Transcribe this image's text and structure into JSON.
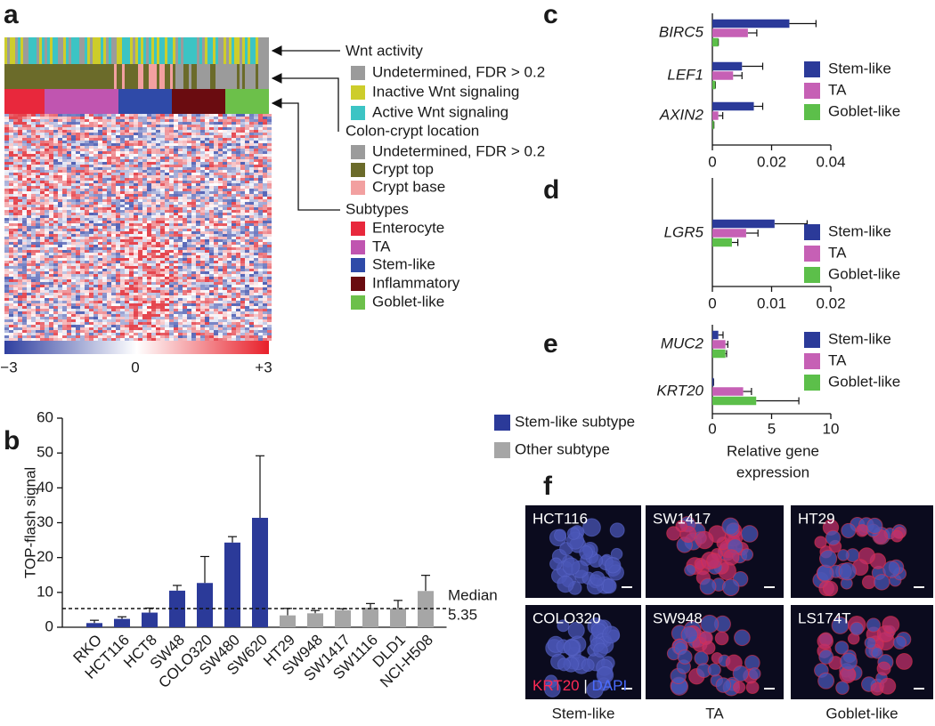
{
  "panel_labels": [
    "a",
    "b",
    "c",
    "d",
    "e",
    "f"
  ],
  "heatmap": {
    "annotations": [
      {
        "title": "Wnt activity",
        "items": [
          "Undetermined, FDR > 0.2",
          "Inactive Wnt signaling",
          "Active Wnt signaling"
        ],
        "colors": [
          "#9b9b9b",
          "#cdcd2b",
          "#3cc4c4"
        ]
      },
      {
        "title": "Colon-crypt location",
        "items": [
          "Undetermined, FDR > 0.2",
          "Crypt top",
          "Crypt base"
        ],
        "colors": [
          "#9b9b9b",
          "#6b6b2a",
          "#f2a0a0"
        ]
      },
      {
        "title": "Subtypes",
        "items": [
          "Enterocyte",
          "TA",
          "Stem-like",
          "Inflammatory",
          "Goblet-like"
        ],
        "colors": [
          "#e8283c",
          "#c055b0",
          "#2f4aa8",
          "#6a0c10",
          "#6cc04a"
        ]
      }
    ],
    "colorbar_labels": [
      "−3",
      "0",
      "+3"
    ]
  },
  "chart_data": [
    {
      "type": "bar",
      "ylabel": "TOP-flash signal",
      "categories": [
        "RKO",
        "HCT116",
        "HCT8",
        "SW48",
        "COLO320",
        "SW480",
        "SW620",
        "HT29",
        "SW948",
        "SW1417",
        "SW1116",
        "DLD1",
        "NCI-H508"
      ],
      "series": [
        {
          "name": "Stem-like subtype",
          "color": "#2b3a99",
          "values": [
            1.2,
            2.4,
            4.2,
            10.5,
            12.7,
            24.3,
            31.4,
            null,
            null,
            null,
            null,
            null,
            null
          ],
          "errors": [
            0.8,
            0.6,
            1.3,
            1.5,
            7.6,
            1.7,
            17.8,
            null,
            null,
            null,
            null,
            null,
            null
          ]
        },
        {
          "name": "Other subtype",
          "color": "#a6a6a6",
          "values": [
            null,
            null,
            null,
            null,
            null,
            null,
            null,
            3.4,
            4.0,
            4.9,
            5.6,
            5.4,
            10.4
          ],
          "errors": [
            null,
            null,
            null,
            null,
            null,
            null,
            null,
            2.0,
            0.8,
            0.4,
            1.2,
            2.3,
            4.5
          ]
        }
      ],
      "ylim": [
        0,
        60
      ],
      "yticks": [
        0,
        10,
        20,
        30,
        40,
        50,
        60
      ],
      "median": {
        "label": "Median",
        "value": 5.35
      }
    },
    {
      "type": "hbar",
      "categories": [
        "BIRC5",
        "LEF1",
        "AXIN2"
      ],
      "series": [
        {
          "name": "Stem-like",
          "color": "#2b3a99",
          "values": [
            0.026,
            0.01,
            0.014
          ],
          "errors": [
            0.009,
            0.007,
            0.003
          ]
        },
        {
          "name": "TA",
          "color": "#c660b5",
          "values": [
            0.012,
            0.007,
            0.002
          ],
          "errors": [
            0.003,
            0.003,
            0.0015
          ]
        },
        {
          "name": "Goblet-like",
          "color": "#5cbf4a",
          "values": [
            0.002,
            0.001,
            0.0005
          ],
          "errors": [
            0,
            0,
            0
          ]
        }
      ],
      "xlim": [
        0,
        0.04
      ],
      "xticks": [
        0,
        0.02,
        0.04
      ]
    },
    {
      "type": "hbar",
      "categories": [
        "LGR5"
      ],
      "series": [
        {
          "name": "Stem-like",
          "color": "#2b3a99",
          "values": [
            0.0105
          ],
          "errors": [
            0.0055
          ]
        },
        {
          "name": "TA",
          "color": "#c660b5",
          "values": [
            0.0057
          ],
          "errors": [
            0.002
          ]
        },
        {
          "name": "Goblet-like",
          "color": "#5cbf4a",
          "values": [
            0.0033
          ],
          "errors": [
            0.001
          ]
        }
      ],
      "xlim": [
        0,
        0.02
      ],
      "xticks": [
        0,
        0.01,
        0.02
      ]
    },
    {
      "type": "hbar",
      "categories": [
        "MUC2",
        "KRT20"
      ],
      "series": [
        {
          "name": "Stem-like",
          "color": "#2b3a99",
          "values": [
            0.5,
            0.1
          ],
          "errors": [
            0.4,
            0
          ]
        },
        {
          "name": "TA",
          "color": "#c660b5",
          "values": [
            1.1,
            2.6
          ],
          "errors": [
            0.2,
            0.7
          ]
        },
        {
          "name": "Goblet-like",
          "color": "#5cbf4a",
          "values": [
            1.1,
            3.7
          ],
          "errors": [
            0.1,
            3.6
          ]
        }
      ],
      "xlim": [
        0,
        10
      ],
      "xticks": [
        0,
        5,
        10
      ],
      "xlabel": [
        "Relative gene",
        "expression"
      ]
    }
  ],
  "micrographs": {
    "cells": [
      [
        "HCT116",
        "SW1417",
        "HT29"
      ],
      [
        "COLO320",
        "SW948",
        "LS174T"
      ]
    ],
    "stain": [
      "KRT20",
      "|",
      "DAPI"
    ],
    "columns": [
      "Stem-like",
      "TA",
      "Goblet-like"
    ]
  }
}
